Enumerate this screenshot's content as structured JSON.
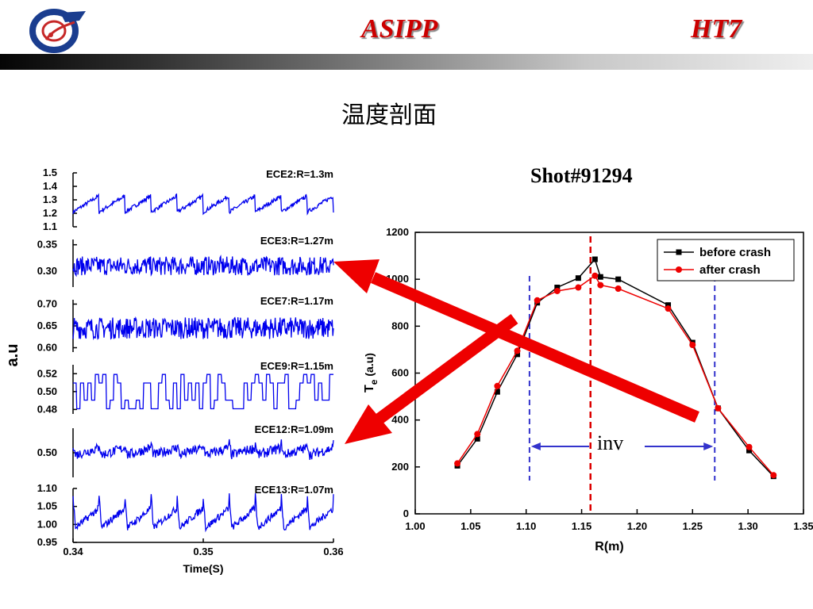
{
  "header": {
    "left": "ASIPP",
    "right": "HT7",
    "logo": "asipp-logo"
  },
  "slide_title": "温度剖面",
  "shot_label": "Shot#91294",
  "colors": {
    "header_text": "#cc0000",
    "trace": "#0000ee",
    "before_crash": "#000000",
    "after_crash": "#ee0000",
    "inversion_marker": "#3333cc",
    "axis_marker": "#dd0000",
    "arrow": "#ee0000"
  },
  "chart_data": [
    {
      "type": "line",
      "ylabel": "a.u",
      "xlabel": "Time(S)",
      "x_ticks": [
        "0.34",
        "0.35",
        "0.36"
      ],
      "xlim": [
        0.34,
        0.36
      ],
      "panels": [
        {
          "name": "ECE2:R=1.3m",
          "ylim": [
            1.1,
            1.5
          ],
          "yticks": [
            "1.5",
            "1.4",
            "1.3",
            "1.2",
            "1.1"
          ],
          "ytick_values": [
            1.5,
            1.4,
            1.3,
            1.2,
            1.1
          ],
          "mean": 1.27,
          "amp": 0.06,
          "noise": 0.015,
          "shape": "sawtooth",
          "periods": 10
        },
        {
          "name": "ECE3:R=1.27m",
          "ylim": [
            0.27,
            0.36
          ],
          "yticks": [
            "0.35",
            "0.30"
          ],
          "ytick_values": [
            0.35,
            0.3
          ],
          "mean": 0.31,
          "amp": 0.005,
          "noise": 0.018,
          "shape": "noise",
          "periods": 10
        },
        {
          "name": "ECE7:R=1.17m",
          "ylim": [
            0.59,
            0.71
          ],
          "yticks": [
            "0.70",
            "0.65",
            "0.60"
          ],
          "ytick_values": [
            0.7,
            0.65,
            0.6
          ],
          "mean": 0.645,
          "amp": 0.01,
          "noise": 0.025,
          "shape": "noise",
          "periods": 10
        },
        {
          "name": "ECE9:R=1.15m",
          "ylim": [
            0.475,
            0.53
          ],
          "yticks": [
            "0.52",
            "0.50",
            "0.48"
          ],
          "ytick_values": [
            0.52,
            0.5,
            0.48
          ],
          "mean": 0.5,
          "amp": 0.0,
          "noise": 0.012,
          "shape": "digital",
          "periods": 10
        },
        {
          "name": "ECE12:R=1.09m",
          "ylim": [
            0.47,
            0.53
          ],
          "yticks": [
            "0.50"
          ],
          "ytick_values": [
            0.5
          ],
          "mean": 0.502,
          "amp": 0.008,
          "noise": 0.006,
          "shape": "inverted",
          "periods": 10
        },
        {
          "name": "ECE13:R=1.07m",
          "ylim": [
            0.95,
            1.1
          ],
          "yticks": [
            "1.10",
            "1.05",
            "1.00",
            "0.95"
          ],
          "ytick_values": [
            1.1,
            1.05,
            1.0,
            0.95
          ],
          "mean": 1.02,
          "amp": 0.05,
          "noise": 0.01,
          "shape": "inverted",
          "periods": 10
        }
      ]
    },
    {
      "type": "line",
      "xlabel": "R(m)",
      "ylabel_main": "T",
      "ylabel_sub": "e",
      "ylabel_unit": "(a.u)",
      "xlim": [
        1.0,
        1.35
      ],
      "ylim": [
        0,
        1200
      ],
      "x_ticks": [
        "1.00",
        "1.05",
        "1.10",
        "1.15",
        "1.20",
        "1.25",
        "1.30",
        "1.35"
      ],
      "x_tick_values": [
        1.0,
        1.05,
        1.1,
        1.15,
        1.2,
        1.25,
        1.3,
        1.35
      ],
      "y_ticks": [
        "0",
        "200",
        "400",
        "600",
        "800",
        "1000",
        "1200"
      ],
      "y_tick_values": [
        0,
        200,
        400,
        600,
        800,
        1000,
        1200
      ],
      "legend_position": "top-right",
      "series": [
        {
          "name": "before crash",
          "marker": "square",
          "x": [
            1.038,
            1.056,
            1.074,
            1.092,
            1.11,
            1.128,
            1.147,
            1.162,
            1.167,
            1.183,
            1.228,
            1.25,
            1.273,
            1.301,
            1.323
          ],
          "y": [
            205,
            320,
            520,
            680,
            900,
            965,
            1005,
            1085,
            1010,
            1000,
            890,
            730,
            450,
            270,
            160
          ]
        },
        {
          "name": "after crash",
          "marker": "circle",
          "x": [
            1.038,
            1.056,
            1.074,
            1.092,
            1.11,
            1.128,
            1.147,
            1.162,
            1.167,
            1.183,
            1.228,
            1.25,
            1.273,
            1.301,
            1.323
          ],
          "y": [
            215,
            340,
            545,
            695,
            910,
            950,
            965,
            1015,
            975,
            960,
            875,
            720,
            450,
            285,
            165
          ]
        }
      ],
      "annotations": {
        "inversion_label": "inv",
        "inversion_radii": [
          1.103,
          1.27
        ],
        "axis_radius": 1.158
      }
    }
  ]
}
